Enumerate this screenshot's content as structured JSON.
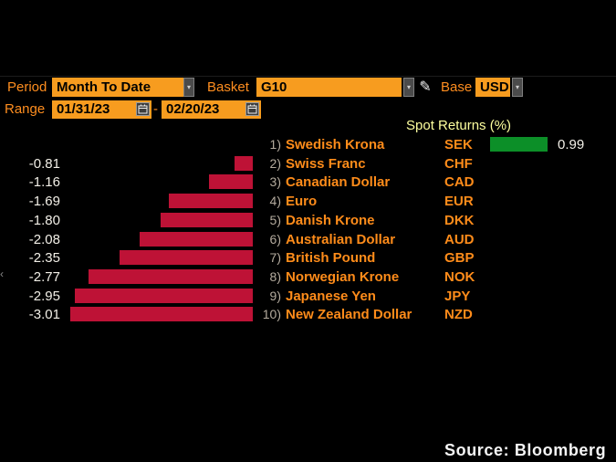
{
  "toolbar": {
    "period_label": "Period",
    "period_value": "Month To Date",
    "basket_label": "Basket",
    "basket_value": "G10",
    "base_label": "Base",
    "base_value": "USD",
    "range_label": "Range",
    "range_start": "01/31/23",
    "range_separator": "-",
    "range_end": "02/20/23",
    "dropdown_icon": "chevron-down",
    "edit_icon": "pencil",
    "calendar_icon": "calendar",
    "field_color": "#f79c1f",
    "label_color": "#ff8e1f"
  },
  "chart_data": {
    "type": "bar",
    "orientation": "horizontal",
    "title": "Spot Returns (%)",
    "unit": "%",
    "value_range": [
      -3.01,
      0.99
    ],
    "negative_color": "#be1236",
    "positive_color": "#0c8f28",
    "rows": [
      {
        "rank": "1)",
        "name": "Swedish Krona",
        "ticker": "SEK",
        "value": 0.99,
        "value_label": "0.99"
      },
      {
        "rank": "2)",
        "name": "Swiss Franc",
        "ticker": "CHF",
        "value": -0.81,
        "value_label": "-0.81"
      },
      {
        "rank": "3)",
        "name": "Canadian Dollar",
        "ticker": "CAD",
        "value": -1.16,
        "value_label": "-1.16"
      },
      {
        "rank": "4)",
        "name": "Euro",
        "ticker": "EUR",
        "value": -1.69,
        "value_label": "-1.69"
      },
      {
        "rank": "5)",
        "name": "Danish Krone",
        "ticker": "DKK",
        "value": -1.8,
        "value_label": "-1.80"
      },
      {
        "rank": "6)",
        "name": "Australian Dollar",
        "ticker": "AUD",
        "value": -2.08,
        "value_label": "-2.08"
      },
      {
        "rank": "7)",
        "name": "British Pound",
        "ticker": "GBP",
        "value": -2.35,
        "value_label": "-2.35"
      },
      {
        "rank": "8)",
        "name": "Norwegian Krone",
        "ticker": "NOK",
        "value": -2.77,
        "value_label": "-2.77"
      },
      {
        "rank": "9)",
        "name": "Japanese Yen",
        "ticker": "JPY",
        "value": -2.95,
        "value_label": "-2.95"
      },
      {
        "rank": "10)",
        "name": "New Zealand Dollar",
        "ticker": "NZD",
        "value": -3.01,
        "value_label": "-3.01"
      }
    ]
  },
  "source": "Source: Bloomberg",
  "colors": {
    "background": "#000000",
    "title_yellow": "#feff9e",
    "value_text": "#f2efe7",
    "rank_gray": "#b4ab9e",
    "name_orange": "#ff8c1a"
  }
}
